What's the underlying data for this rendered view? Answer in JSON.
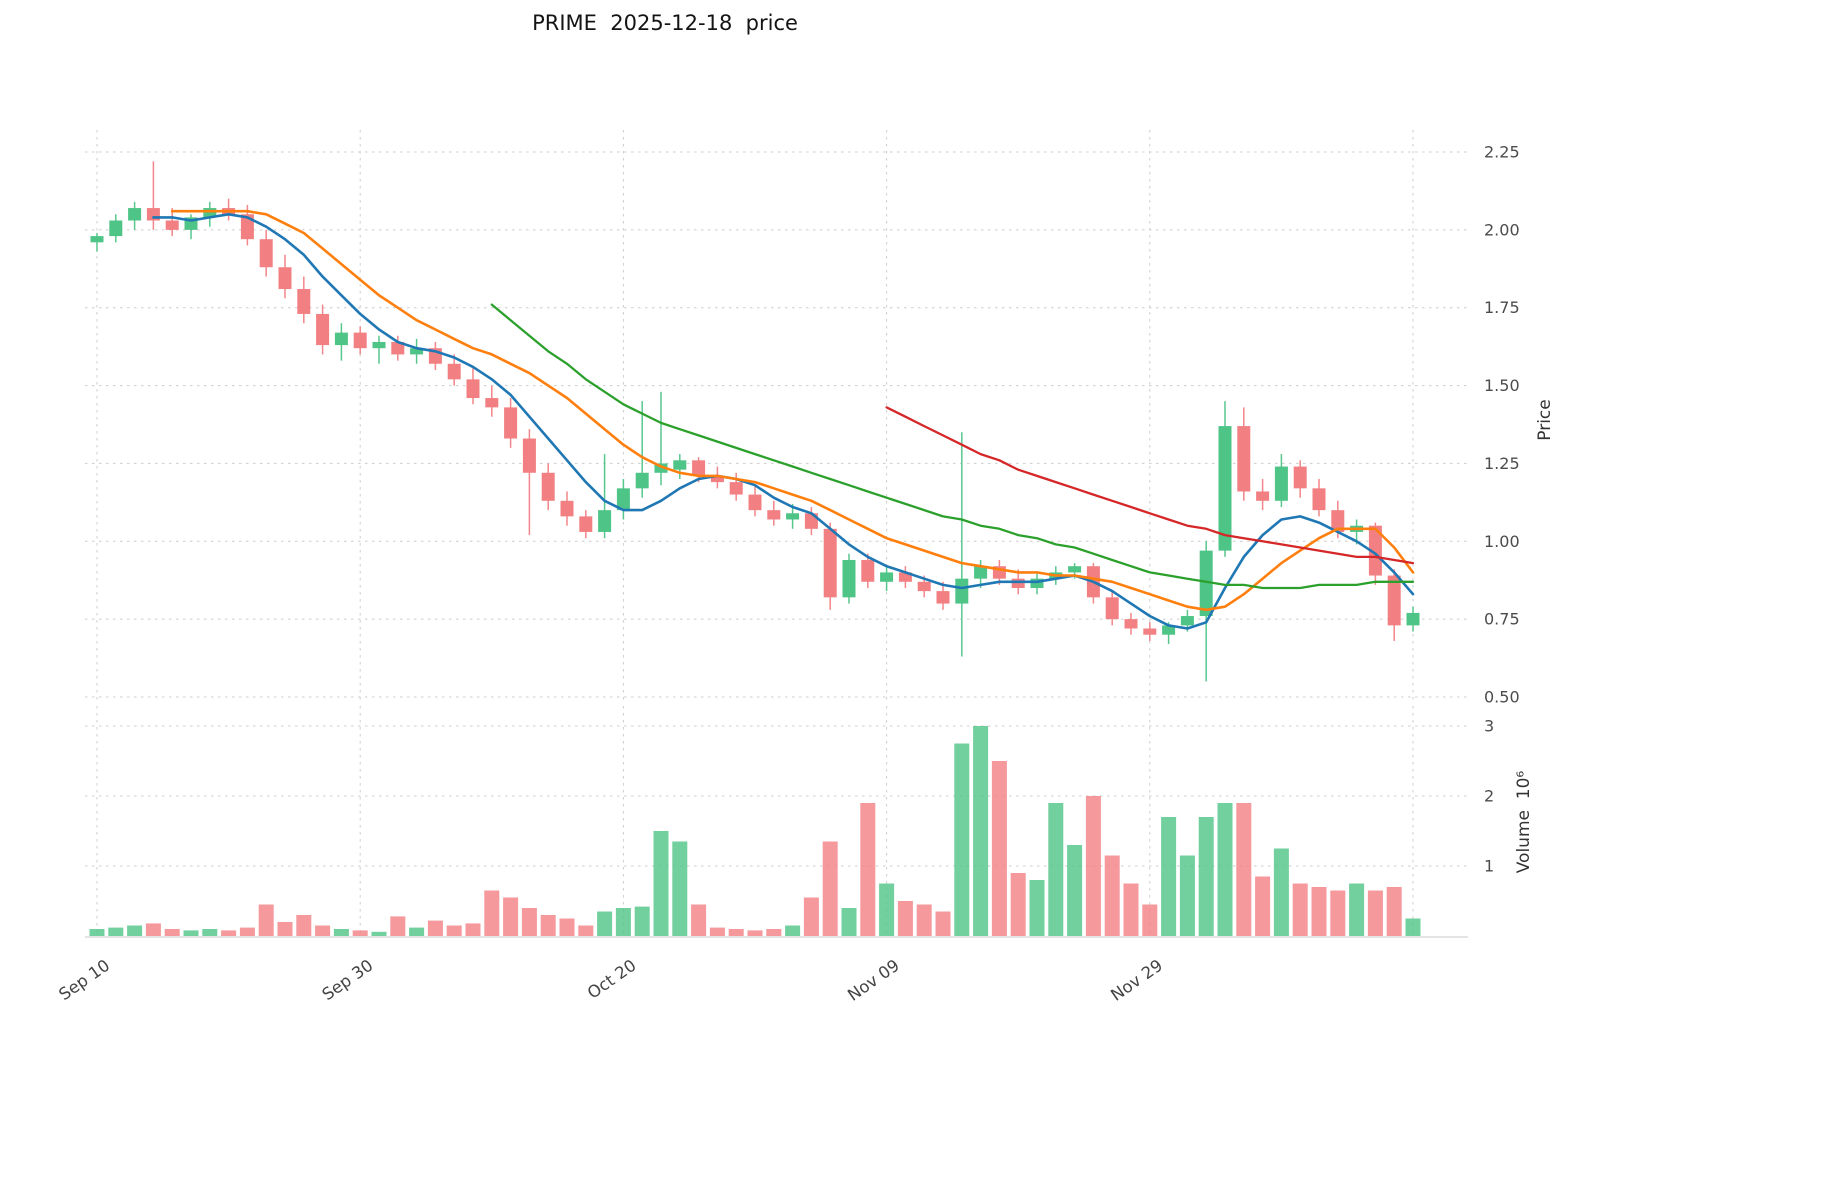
{
  "figure": {
    "title": "PRIME  2025-12-18  price"
  },
  "chart_data": {
    "type": "candlestick",
    "symbol": "PRIME",
    "as_of_date": "2025-12-18",
    "grid": true,
    "legend": "none",
    "price_axis": {
      "label": "Price",
      "side": "right",
      "ticks": [
        2.25,
        2.0,
        1.75,
        1.5,
        1.25,
        1.0,
        0.75,
        0.5
      ],
      "ylim": [
        0.46,
        2.32
      ]
    },
    "volume_axis": {
      "label": "Volume  10⁶",
      "side": "right",
      "ticks": [
        3,
        2,
        1
      ],
      "ylim": [
        0,
        3.3
      ],
      "unit": "millions of shares"
    },
    "x_tick_labels": [
      "Sep 10",
      "Sep 30",
      "Oct 20",
      "Nov 09",
      "Nov 29"
    ],
    "x_tick_indices": [
      0,
      14,
      28,
      42,
      56
    ],
    "x_grid_indices": [
      0,
      14,
      28,
      42,
      56,
      70
    ],
    "colors": {
      "up": "#4fc487",
      "down": "#f28083",
      "ma_short": "#1f77b4",
      "ma_medium": "#ff7f0e",
      "ma_long": "#2ca02c",
      "ma_longest": "#d62728",
      "grid": "#cccccc",
      "tick_text": "#4c4c4c",
      "baseline": "#c9c9c9"
    },
    "dates": [
      "2025-09-10",
      "2025-09-11",
      "2025-09-12",
      "2025-09-15",
      "2025-09-16",
      "2025-09-17",
      "2025-09-18",
      "2025-09-19",
      "2025-09-22",
      "2025-09-23",
      "2025-09-24",
      "2025-09-25",
      "2025-09-26",
      "2025-09-29",
      "2025-09-30",
      "2025-10-01",
      "2025-10-02",
      "2025-10-03",
      "2025-10-06",
      "2025-10-07",
      "2025-10-08",
      "2025-10-09",
      "2025-10-10",
      "2025-10-13",
      "2025-10-14",
      "2025-10-15",
      "2025-10-16",
      "2025-10-17",
      "2025-10-20",
      "2025-10-21",
      "2025-10-22",
      "2025-10-23",
      "2025-10-24",
      "2025-10-27",
      "2025-10-28",
      "2025-10-29",
      "2025-10-30",
      "2025-10-31",
      "2025-11-03",
      "2025-11-04",
      "2025-11-05",
      "2025-11-06",
      "2025-11-07",
      "2025-11-10",
      "2025-11-11",
      "2025-11-12",
      "2025-11-13",
      "2025-11-14",
      "2025-11-17",
      "2025-11-18",
      "2025-11-19",
      "2025-11-20",
      "2025-11-21",
      "2025-11-24",
      "2025-11-25",
      "2025-11-26",
      "2025-11-28",
      "2025-12-01",
      "2025-12-02",
      "2025-12-03",
      "2025-12-04",
      "2025-12-05",
      "2025-12-08",
      "2025-12-09",
      "2025-12-10",
      "2025-12-11",
      "2025-12-12",
      "2025-12-15",
      "2025-12-16",
      "2025-12-17",
      "2025-12-18"
    ],
    "ohlc": [
      [
        1.96,
        1.99,
        1.93,
        1.98
      ],
      [
        1.98,
        2.05,
        1.96,
        2.03
      ],
      [
        2.03,
        2.09,
        2.0,
        2.07
      ],
      [
        2.07,
        2.22,
        2.0,
        2.03
      ],
      [
        2.03,
        2.07,
        1.98,
        2.0
      ],
      [
        2.0,
        2.05,
        1.97,
        2.04
      ],
      [
        2.04,
        2.09,
        2.01,
        2.07
      ],
      [
        2.07,
        2.1,
        2.03,
        2.05
      ],
      [
        2.05,
        2.08,
        1.95,
        1.97
      ],
      [
        1.97,
        2.0,
        1.85,
        1.88
      ],
      [
        1.88,
        1.92,
        1.78,
        1.81
      ],
      [
        1.81,
        1.85,
        1.7,
        1.73
      ],
      [
        1.73,
        1.76,
        1.6,
        1.63
      ],
      [
        1.63,
        1.7,
        1.58,
        1.67
      ],
      [
        1.67,
        1.69,
        1.6,
        1.62
      ],
      [
        1.62,
        1.66,
        1.57,
        1.64
      ],
      [
        1.64,
        1.66,
        1.58,
        1.6
      ],
      [
        1.6,
        1.65,
        1.57,
        1.62
      ],
      [
        1.62,
        1.64,
        1.55,
        1.57
      ],
      [
        1.57,
        1.6,
        1.5,
        1.52
      ],
      [
        1.52,
        1.56,
        1.44,
        1.46
      ],
      [
        1.46,
        1.5,
        1.4,
        1.43
      ],
      [
        1.43,
        1.46,
        1.3,
        1.33
      ],
      [
        1.33,
        1.36,
        1.02,
        1.22
      ],
      [
        1.22,
        1.25,
        1.1,
        1.13
      ],
      [
        1.13,
        1.16,
        1.05,
        1.08
      ],
      [
        1.08,
        1.1,
        1.01,
        1.03
      ],
      [
        1.03,
        1.28,
        1.01,
        1.1
      ],
      [
        1.1,
        1.2,
        1.07,
        1.17
      ],
      [
        1.17,
        1.45,
        1.14,
        1.22
      ],
      [
        1.22,
        1.48,
        1.18,
        1.25
      ],
      [
        1.23,
        1.28,
        1.2,
        1.26
      ],
      [
        1.26,
        1.27,
        1.19,
        1.21
      ],
      [
        1.21,
        1.24,
        1.17,
        1.19
      ],
      [
        1.19,
        1.22,
        1.13,
        1.15
      ],
      [
        1.15,
        1.18,
        1.08,
        1.1
      ],
      [
        1.1,
        1.13,
        1.05,
        1.07
      ],
      [
        1.07,
        1.12,
        1.04,
        1.09
      ],
      [
        1.09,
        1.11,
        1.02,
        1.04
      ],
      [
        1.04,
        1.06,
        0.78,
        0.82
      ],
      [
        0.82,
        0.96,
        0.8,
        0.94
      ],
      [
        0.94,
        0.96,
        0.85,
        0.87
      ],
      [
        0.87,
        0.92,
        0.84,
        0.9
      ],
      [
        0.9,
        0.92,
        0.85,
        0.87
      ],
      [
        0.87,
        0.89,
        0.82,
        0.84
      ],
      [
        0.84,
        0.87,
        0.78,
        0.8
      ],
      [
        0.8,
        1.35,
        0.63,
        0.88
      ],
      [
        0.88,
        0.94,
        0.85,
        0.92
      ],
      [
        0.92,
        0.94,
        0.86,
        0.88
      ],
      [
        0.88,
        0.91,
        0.83,
        0.85
      ],
      [
        0.85,
        0.9,
        0.83,
        0.88
      ],
      [
        0.88,
        0.92,
        0.86,
        0.9
      ],
      [
        0.9,
        0.93,
        0.88,
        0.92
      ],
      [
        0.92,
        0.93,
        0.8,
        0.82
      ],
      [
        0.82,
        0.84,
        0.73,
        0.75
      ],
      [
        0.75,
        0.77,
        0.7,
        0.72
      ],
      [
        0.72,
        0.74,
        0.68,
        0.7
      ],
      [
        0.7,
        0.74,
        0.67,
        0.73
      ],
      [
        0.73,
        0.78,
        0.71,
        0.76
      ],
      [
        0.76,
        1.0,
        0.55,
        0.97
      ],
      [
        0.97,
        1.45,
        0.95,
        1.37
      ],
      [
        1.37,
        1.43,
        1.13,
        1.16
      ],
      [
        1.16,
        1.2,
        1.1,
        1.13
      ],
      [
        1.13,
        1.28,
        1.11,
        1.24
      ],
      [
        1.24,
        1.26,
        1.14,
        1.17
      ],
      [
        1.17,
        1.2,
        1.08,
        1.1
      ],
      [
        1.1,
        1.13,
        1.01,
        1.03
      ],
      [
        1.03,
        1.07,
        0.99,
        1.05
      ],
      [
        1.05,
        1.06,
        0.86,
        0.89
      ],
      [
        0.89,
        0.91,
        0.68,
        0.73
      ],
      [
        0.73,
        0.79,
        0.71,
        0.77
      ]
    ],
    "volume": [
      0.1,
      0.12,
      0.15,
      0.18,
      0.1,
      0.08,
      0.1,
      0.08,
      0.12,
      0.45,
      0.2,
      0.3,
      0.15,
      0.1,
      0.08,
      0.06,
      0.28,
      0.12,
      0.22,
      0.15,
      0.18,
      0.65,
      0.55,
      0.4,
      0.3,
      0.25,
      0.15,
      0.35,
      0.4,
      0.42,
      1.5,
      1.35,
      0.45,
      0.12,
      0.1,
      0.08,
      0.1,
      0.15,
      0.55,
      1.35,
      0.4,
      1.9,
      0.75,
      0.5,
      0.45,
      0.35,
      2.75,
      3.0,
      2.5,
      0.9,
      0.8,
      1.9,
      1.3,
      2.0,
      1.15,
      0.75,
      0.45,
      1.7,
      1.15,
      1.7,
      1.9,
      1.9,
      0.85,
      1.25,
      0.75,
      0.7,
      0.65,
      0.75,
      0.65,
      0.7,
      0.25
    ],
    "moving_averages": [
      {
        "name": "ma-short",
        "color": "#1f77b4",
        "values": [
          null,
          null,
          null,
          2.04,
          2.04,
          2.03,
          2.04,
          2.05,
          2.04,
          2.01,
          1.97,
          1.92,
          1.85,
          1.79,
          1.73,
          1.68,
          1.64,
          1.62,
          1.61,
          1.59,
          1.56,
          1.52,
          1.47,
          1.4,
          1.33,
          1.26,
          1.19,
          1.13,
          1.1,
          1.1,
          1.13,
          1.17,
          1.2,
          1.21,
          1.2,
          1.18,
          1.14,
          1.11,
          1.09,
          1.04,
          0.99,
          0.95,
          0.92,
          0.9,
          0.88,
          0.86,
          0.85,
          0.86,
          0.87,
          0.87,
          0.87,
          0.88,
          0.89,
          0.87,
          0.84,
          0.8,
          0.76,
          0.73,
          0.72,
          0.74,
          0.85,
          0.95,
          1.02,
          1.07,
          1.08,
          1.06,
          1.03,
          1.0,
          0.96,
          0.9,
          0.83
        ]
      },
      {
        "name": "ma-medium",
        "color": "#ff7f0e",
        "values": [
          null,
          null,
          null,
          null,
          2.06,
          2.06,
          2.06,
          2.06,
          2.06,
          2.05,
          2.02,
          1.99,
          1.94,
          1.89,
          1.84,
          1.79,
          1.75,
          1.71,
          1.68,
          1.65,
          1.62,
          1.6,
          1.57,
          1.54,
          1.5,
          1.46,
          1.41,
          1.36,
          1.31,
          1.27,
          1.24,
          1.22,
          1.21,
          1.21,
          1.2,
          1.19,
          1.17,
          1.15,
          1.13,
          1.1,
          1.07,
          1.04,
          1.01,
          0.99,
          0.97,
          0.95,
          0.93,
          0.92,
          0.91,
          0.9,
          0.9,
          0.89,
          0.89,
          0.88,
          0.87,
          0.85,
          0.83,
          0.81,
          0.79,
          0.78,
          0.79,
          0.83,
          0.88,
          0.93,
          0.97,
          1.01,
          1.04,
          1.04,
          1.04,
          0.98,
          0.9
        ]
      },
      {
        "name": "ma-long",
        "color": "#2ca02c",
        "values": [
          null,
          null,
          null,
          null,
          null,
          null,
          null,
          null,
          null,
          null,
          null,
          null,
          null,
          null,
          null,
          null,
          null,
          null,
          null,
          null,
          null,
          1.76,
          1.71,
          1.66,
          1.61,
          1.57,
          1.52,
          1.48,
          1.44,
          1.41,
          1.38,
          1.36,
          1.34,
          1.32,
          1.3,
          1.28,
          1.26,
          1.24,
          1.22,
          1.2,
          1.18,
          1.16,
          1.14,
          1.12,
          1.1,
          1.08,
          1.07,
          1.05,
          1.04,
          1.02,
          1.01,
          0.99,
          0.98,
          0.96,
          0.94,
          0.92,
          0.9,
          0.89,
          0.88,
          0.87,
          0.86,
          0.86,
          0.85,
          0.85,
          0.85,
          0.86,
          0.86,
          0.86,
          0.87,
          0.87,
          0.87
        ]
      },
      {
        "name": "ma-longest",
        "color": "#d62728",
        "values": [
          null,
          null,
          null,
          null,
          null,
          null,
          null,
          null,
          null,
          null,
          null,
          null,
          null,
          null,
          null,
          null,
          null,
          null,
          null,
          null,
          null,
          null,
          null,
          null,
          null,
          null,
          null,
          null,
          null,
          null,
          null,
          null,
          null,
          null,
          null,
          null,
          null,
          null,
          null,
          null,
          null,
          null,
          1.43,
          1.4,
          1.37,
          1.34,
          1.31,
          1.28,
          1.26,
          1.23,
          1.21,
          1.19,
          1.17,
          1.15,
          1.13,
          1.11,
          1.09,
          1.07,
          1.05,
          1.04,
          1.02,
          1.01,
          1.0,
          0.99,
          0.98,
          0.97,
          0.96,
          0.95,
          0.95,
          0.94,
          0.93
        ]
      }
    ]
  }
}
